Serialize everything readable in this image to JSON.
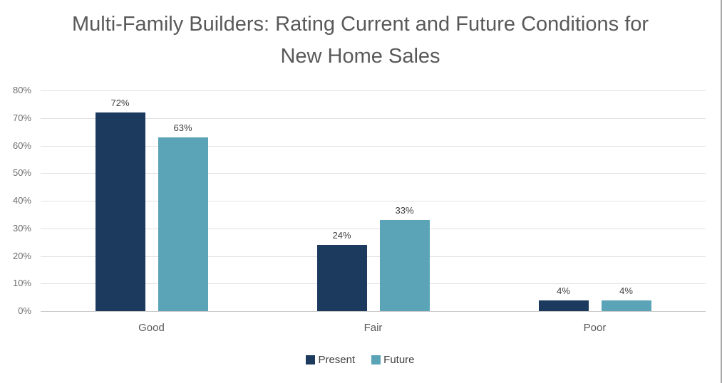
{
  "chart_data": {
    "type": "bar",
    "title": "Multi-Family Builders: Rating Current and Future Conditions for New Home Sales",
    "title_color": "#595959",
    "categories": [
      "Good",
      "Fair",
      "Poor"
    ],
    "series": [
      {
        "name": "Present",
        "color": "#1B3A5E",
        "values": [
          72,
          24,
          4
        ]
      },
      {
        "name": "Future",
        "color": "#5BA4B7",
        "values": [
          63,
          33,
          4
        ]
      }
    ],
    "value_suffix": "%",
    "data_labels": [
      "72%",
      "63%",
      "24%",
      "33%",
      "4%",
      "4%"
    ],
    "xlabel": "",
    "ylabel": "",
    "ylim": [
      0,
      80
    ],
    "ytick_step": 10,
    "ytick_labels": [
      "0%",
      "10%",
      "20%",
      "30%",
      "40%",
      "50%",
      "60%",
      "70%",
      "80%"
    ],
    "grid": true,
    "legend_position": "bottom"
  }
}
